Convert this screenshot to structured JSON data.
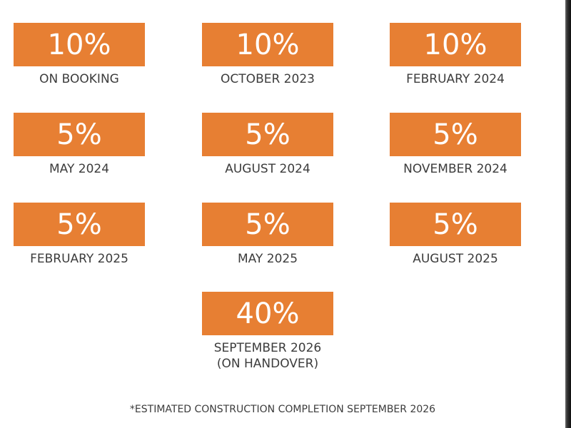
{
  "schedule": {
    "items": [
      {
        "percent": "10%",
        "label": "ON BOOKING"
      },
      {
        "percent": "10%",
        "label": "OCTOBER 2023"
      },
      {
        "percent": "10%",
        "label": "FEBRUARY 2024"
      },
      {
        "percent": "5%",
        "label": "MAY 2024"
      },
      {
        "percent": "5%",
        "label": "AUGUST 2024"
      },
      {
        "percent": "5%",
        "label": "NOVEMBER 2024"
      },
      {
        "percent": "5%",
        "label": "FEBRUARY 2025"
      },
      {
        "percent": "5%",
        "label": "MAY 2025"
      },
      {
        "percent": "5%",
        "label": "AUGUST 2025"
      },
      {
        "percent": "40%",
        "label": "SEPTEMBER 2026",
        "label_line2": "(ON HANDOVER)"
      }
    ]
  },
  "footnote": "*ESTIMATED CONSTRUCTION COMPLETION SEPTEMBER 2026",
  "colors": {
    "badge": "#e77f33",
    "badge_text": "#ffffff",
    "label_text": "#3c3c3c",
    "background": "#ffffff"
  }
}
